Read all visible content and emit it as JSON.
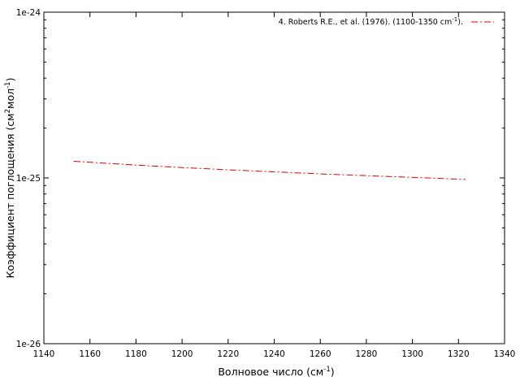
{
  "chart_data": {
    "type": "line",
    "title": "",
    "xlabel": {
      "base": "Волновое число (см",
      "sup": "-1",
      "end": ")"
    },
    "ylabel": {
      "part1": "Коэффициент поглощения (см",
      "sup1": "2",
      "part2": "мол",
      "sup2": "-1",
      "end": ")"
    },
    "xlim": [
      1140,
      1340
    ],
    "ylim": [
      1e-26,
      1e-24
    ],
    "yscale": "log",
    "x_ticks": [
      1140,
      1160,
      1180,
      1200,
      1220,
      1240,
      1260,
      1280,
      1300,
      1320,
      1340
    ],
    "x_tick_labels": [
      "1140",
      "1160",
      "1180",
      "1200",
      "1220",
      "1240",
      "1260",
      "1280",
      "1300",
      "1320",
      "1340"
    ],
    "y_major_ticks": [
      1e-26,
      1e-25,
      1e-24
    ],
    "y_tick_labels": [
      "1e-26",
      "1e-25",
      "1e-24"
    ],
    "grid": false,
    "legend_position": "top-right",
    "series": [
      {
        "name": {
          "base": "4. Roberts R.E., et al. (1976). (1100-1350 cm",
          "sup": "-1",
          "end": ")."
        },
        "color": "#dd0000",
        "line_style": "dash-dot",
        "x": [
          1153,
          1180,
          1200,
          1220,
          1240,
          1260,
          1280,
          1300,
          1323
        ],
        "y": [
          1.26e-25,
          1.195e-25,
          1.155e-25,
          1.12e-25,
          1.088e-25,
          1.058e-25,
          1.032e-25,
          1.008e-25,
          9.8e-26
        ]
      }
    ]
  }
}
